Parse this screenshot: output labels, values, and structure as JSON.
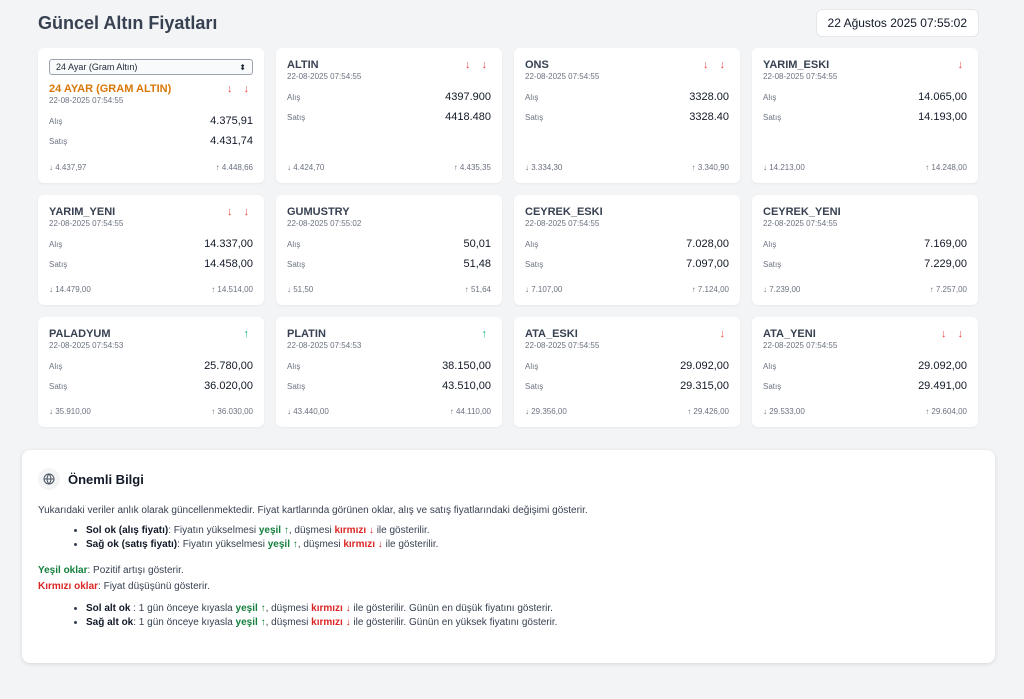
{
  "header": {
    "title": "Güncel Altın Fiyatları",
    "datetime": "22 Ağustos 2025 07:55:02"
  },
  "select": {
    "value": "24 Ayar (Gram Altın)"
  },
  "cards": [
    {
      "name": "24 AYAR (GRAM ALTIN)",
      "time": "22-08-2025 07:54:55",
      "arrows": "↓ ↓",
      "arrow_color": "#ef4444",
      "alis_label": "Alış",
      "alis": "4.375,91",
      "satis_label": "Satış",
      "satis": "4.431,74",
      "low": "↓ 4.437,97",
      "high": "↑ 4.448,66"
    },
    {
      "name": "ALTIN",
      "time": "22-08-2025 07:54:55",
      "arrows": "↓ ↓",
      "arrow_color": "#ef4444",
      "alis_label": "Alış",
      "alis": "4397.900",
      "satis_label": "Satış",
      "satis": "4418.480",
      "low": "↓ 4.424,70",
      "high": "↑ 4.435,35"
    },
    {
      "name": "ONS",
      "time": "22-08-2025 07:54:55",
      "arrows": "↓ ↓",
      "arrow_color": "#ef4444",
      "alis_label": "Alış",
      "alis": "3328.00",
      "satis_label": "Satış",
      "satis": "3328.40",
      "low": "↓ 3.334,30",
      "high": "↑ 3.340,90"
    },
    {
      "name": "YARIM_ESKI",
      "time": "22-08-2025 07:54:55",
      "arrows": "↓",
      "arrow_color": "#ef4444",
      "alis_label": "Alış",
      "alis": "14.065,00",
      "satis_label": "Satış",
      "satis": "14.193,00",
      "low": "↓ 14.213,00",
      "high": "↑ 14.248,00"
    },
    {
      "name": "YARIM_YENI",
      "time": "22-08-2025 07:54:55",
      "arrows": "↓ ↓",
      "arrow_color": "#ef4444",
      "alis_label": "Alış",
      "alis": "14.337,00",
      "satis_label": "Satış",
      "satis": "14.458,00",
      "low": "↓ 14.479,00",
      "high": "↑ 14.514,00"
    },
    {
      "name": "GUMUSTRY",
      "time": "22-08-2025 07:55:02",
      "arrows": "",
      "arrow_color": "#ef4444",
      "alis_label": "Alış",
      "alis": "50,01",
      "satis_label": "Satış",
      "satis": "51,48",
      "low": "↓ 51,50",
      "high": "↑ 51,64"
    },
    {
      "name": "CEYREK_ESKI",
      "time": "22-08-2025 07:54:55",
      "arrows": "",
      "arrow_color": "#ef4444",
      "alis_label": "Alış",
      "alis": "7.028,00",
      "satis_label": "Satış",
      "satis": "7.097,00",
      "low": "↓ 7.107,00",
      "high": "↑ 7.124,00"
    },
    {
      "name": "CEYREK_YENI",
      "time": "22-08-2025 07:54:55",
      "arrows": "",
      "arrow_color": "#ef4444",
      "alis_label": "Alış",
      "alis": "7.169,00",
      "satis_label": "Satış",
      "satis": "7.229,00",
      "low": "↓ 7.239,00",
      "high": "↑ 7.257,00"
    },
    {
      "name": "PALADYUM",
      "time": "22-08-2025 07:54:53",
      "arrows": "↑",
      "arrow_color": "#10b981",
      "alis_label": "Alış",
      "alis": "25.780,00",
      "satis_label": "Satış",
      "satis": "36.020,00",
      "low": "↓ 35.910,00",
      "high": "↑ 36.030,00"
    },
    {
      "name": "PLATIN",
      "time": "22-08-2025 07:54:53",
      "arrows": "↑",
      "arrow_color": "#10b981",
      "alis_label": "Alış",
      "alis": "38.150,00",
      "satis_label": "Satış",
      "satis": "43.510,00",
      "low": "↓ 43.440,00",
      "high": "↑ 44.110,00"
    },
    {
      "name": "ATA_ESKI",
      "time": "22-08-2025 07:54:55",
      "arrows": "↓",
      "arrow_color": "#ef4444",
      "alis_label": "Alış",
      "alis": "29.092,00",
      "satis_label": "Satış",
      "satis": "29.315,00",
      "low": "↓ 29.356,00",
      "high": "↑ 29.426,00"
    },
    {
      "name": "ATA_YENI",
      "time": "22-08-2025 07:54:55",
      "arrows": "↓ ↓",
      "arrow_color": "#ef4444",
      "alis_label": "Alış",
      "alis": "29.092,00",
      "satis_label": "Satış",
      "satis": "29.491,00",
      "low": "↓ 29.533,00",
      "high": "↑ 29.604,00"
    }
  ],
  "info": {
    "title": "Önemli Bilgi",
    "intro": "Yukarıdaki veriler anlık olarak güncellenmektedir. Fiyat kartlarında görünen oklar, alış ve satış fiyatlarındaki değişimi gösterir.",
    "list1": [
      {
        "bold": "Sol ok (alış fiyatı)",
        "pre": ": Fiyatın yükselmesi ",
        "green": "yeşil ↑",
        "mid": ", düşmesi ",
        "red": "kırmızı ↓",
        "post": " ile gösterilir."
      },
      {
        "bold": "Sağ ok (satış fiyatı)",
        "pre": ": Fiyatın yükselmesi ",
        "green": "yeşil ↑",
        "mid": ", düşmesi ",
        "red": "kırmızı ↓",
        "post": " ile gösterilir."
      }
    ],
    "green_label": "Yeşil oklar",
    "green_text": ": Pozitif artışı gösterir.",
    "red_label": "Kırmızı oklar",
    "red_text": ": Fiyat düşüşünü gösterir.",
    "list2": [
      {
        "bold": "Sol alt ok",
        "pre": " : 1 gün önceye kıyasla ",
        "green": "yeşil ↑",
        "mid": ", düşmesi ",
        "red": "kırmızı ↓",
        "post": " ile gösterilir. Günün en düşük fiyatını gösterir."
      },
      {
        "bold": "Sağ alt ok",
        "pre": ": 1 gün önceye kıyasla ",
        "green": "yeşil ↑",
        "mid": ", düşmesi ",
        "red": "kırmızı ↓",
        "post": " ile gösterilir. Günün en yüksek fiyatını gösterir."
      }
    ]
  }
}
